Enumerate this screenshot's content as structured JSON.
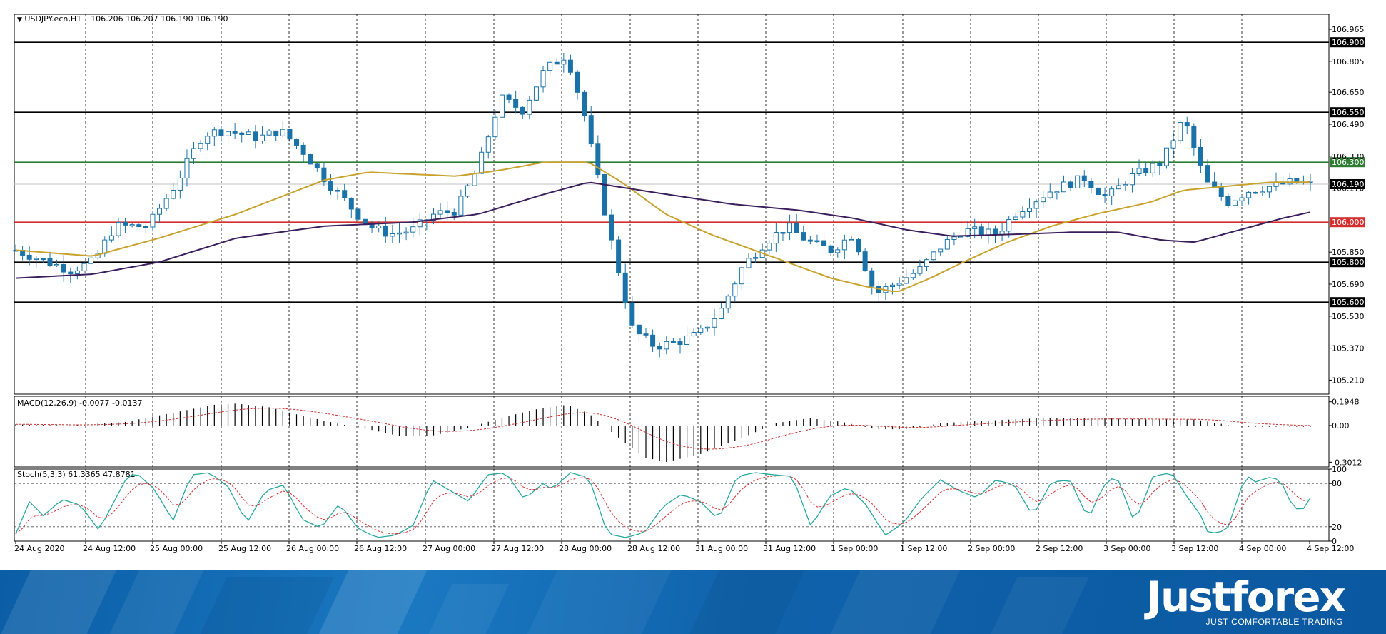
{
  "header": {
    "symbol": "USDJPY.ecn,H1",
    "quote": "106.206 106.207 106.190 106.190"
  },
  "indicators": {
    "macd_label": "MACD(12,26,9) -0.0077 -0.0137",
    "stoch_label": "Stoch(5,3,3) 61.3365 47.8781"
  },
  "footer": {
    "logo": "Justforex",
    "slogan": "JUST COMFORTABLE TRADING"
  },
  "colors": {
    "candle": "#1a73a8",
    "ma_fast": "#c8a22c",
    "ma_slow": "#3b1e5c",
    "level_green": "#2e7d32",
    "level_red": "#d32f2f",
    "stoch_main": "#29a8a0",
    "stoch_signal": "#d32f2f",
    "macd_signal": "#d32f2f",
    "brand": "#0b5ea6"
  },
  "chart_data": [
    {
      "type": "candlestick",
      "title": "USDJPY.ecn,H1",
      "yticks": [
        "106.965",
        "106.805",
        "106.650",
        "106.490",
        "106.330",
        "106.170",
        "105.850",
        "105.690",
        "105.530",
        "105.370",
        "105.210"
      ],
      "ylim": [
        105.14,
        107.04
      ],
      "xticks": [
        "24 Aug 2020",
        "24 Aug 12:00",
        "25 Aug 00:00",
        "25 Aug 12:00",
        "26 Aug 00:00",
        "26 Aug 12:00",
        "27 Aug 00:00",
        "27 Aug 12:00",
        "28 Aug 00:00",
        "28 Aug 12:00",
        "31 Aug 00:00",
        "31 Aug 12:00",
        "1 Sep 00:00",
        "1 Sep 12:00",
        "2 Sep 00:00",
        "2 Sep 12:00",
        "3 Sep 00:00",
        "3 Sep 12:00",
        "4 Sep 00:00",
        "4 Sep 12:00"
      ],
      "levels": [
        {
          "value": 106.9,
          "label": "106.900",
          "color": "black"
        },
        {
          "value": 106.55,
          "label": "106.550",
          "color": "black"
        },
        {
          "value": 106.3,
          "label": "106.300",
          "color": "green"
        },
        {
          "value": 106.0,
          "label": "106.000",
          "color": "red"
        },
        {
          "value": 105.8,
          "label": "105.800",
          "color": "black"
        },
        {
          "value": 105.6,
          "label": "105.600",
          "color": "black"
        }
      ],
      "current_price": {
        "value": 106.19,
        "label": "106.190"
      },
      "bars": 190,
      "anchors": [
        [
          0,
          105.86
        ],
        [
          6,
          105.8
        ],
        [
          10,
          105.76
        ],
        [
          14,
          105.8
        ],
        [
          18,
          105.98
        ],
        [
          24,
          105.98
        ],
        [
          29,
          106.19
        ],
        [
          34,
          106.44
        ],
        [
          38,
          106.46
        ],
        [
          44,
          106.42
        ],
        [
          48,
          106.46
        ],
        [
          52,
          106.36
        ],
        [
          56,
          106.22
        ],
        [
          60,
          106.1
        ],
        [
          64,
          105.98
        ],
        [
          68,
          105.94
        ],
        [
          72,
          105.96
        ],
        [
          76,
          106.04
        ],
        [
          80,
          106.06
        ],
        [
          84,
          106.28
        ],
        [
          88,
          106.62
        ],
        [
          92,
          106.56
        ],
        [
          96,
          106.76
        ],
        [
          100,
          106.84
        ],
        [
          103,
          106.56
        ],
        [
          108,
          105.92
        ],
        [
          112,
          105.46
        ],
        [
          116,
          105.38
        ],
        [
          120,
          105.4
        ],
        [
          124,
          105.44
        ],
        [
          128,
          105.56
        ],
        [
          132,
          105.78
        ],
        [
          136,
          105.9
        ],
        [
          140,
          105.98
        ],
        [
          144,
          105.9
        ],
        [
          148,
          105.86
        ],
        [
          152,
          105.94
        ],
        [
          156,
          105.64
        ],
        [
          160,
          105.7
        ],
        [
          164,
          105.76
        ],
        [
          168,
          105.88
        ],
        [
          172,
          105.96
        ],
        [
          178,
          105.94
        ],
        [
          182,
          106.06
        ],
        [
          188,
          106.16
        ],
        [
          194,
          106.22
        ],
        [
          198,
          106.12
        ],
        [
          202,
          106.22
        ],
        [
          208,
          106.3
        ],
        [
          212,
          106.52
        ],
        [
          216,
          106.2
        ],
        [
          220,
          106.1
        ],
        [
          224,
          106.16
        ],
        [
          228,
          106.18
        ],
        [
          232,
          106.2
        ],
        [
          235,
          106.19
        ]
      ],
      "ma_fast": [
        [
          0,
          105.86
        ],
        [
          14,
          105.83
        ],
        [
          26,
          105.92
        ],
        [
          40,
          106.04
        ],
        [
          56,
          106.21
        ],
        [
          64,
          106.25
        ],
        [
          72,
          106.24
        ],
        [
          80,
          106.23
        ],
        [
          88,
          106.26
        ],
        [
          96,
          106.3
        ],
        [
          104,
          106.3
        ],
        [
          110,
          106.2
        ],
        [
          118,
          106.04
        ],
        [
          126,
          105.94
        ],
        [
          134,
          105.86
        ],
        [
          142,
          105.78
        ],
        [
          148,
          105.72
        ],
        [
          154,
          105.68
        ],
        [
          160,
          105.65
        ],
        [
          166,
          105.72
        ],
        [
          172,
          105.8
        ],
        [
          180,
          105.9
        ],
        [
          188,
          105.98
        ],
        [
          196,
          106.04
        ],
        [
          206,
          106.1
        ],
        [
          212,
          106.16
        ],
        [
          220,
          106.18
        ],
        [
          228,
          106.2
        ],
        [
          235,
          106.2
        ]
      ],
      "ma_slow": [
        [
          0,
          105.72
        ],
        [
          14,
          105.74
        ],
        [
          26,
          105.8
        ],
        [
          40,
          105.92
        ],
        [
          56,
          105.98
        ],
        [
          72,
          106.0
        ],
        [
          84,
          106.04
        ],
        [
          96,
          106.14
        ],
        [
          104,
          106.2
        ],
        [
          118,
          106.14
        ],
        [
          130,
          106.09
        ],
        [
          142,
          106.06
        ],
        [
          152,
          106.02
        ],
        [
          162,
          105.96
        ],
        [
          170,
          105.93
        ],
        [
          182,
          105.94
        ],
        [
          192,
          105.95
        ],
        [
          200,
          105.95
        ],
        [
          208,
          105.91
        ],
        [
          214,
          105.9
        ],
        [
          222,
          105.96
        ],
        [
          230,
          106.02
        ],
        [
          235,
          106.05
        ]
      ]
    },
    {
      "type": "histogram",
      "title": "MACD(12,26,9) -0.0077 -0.0137",
      "yticks": [
        "0.1948",
        "0.00",
        "-0.3012"
      ],
      "ylim": [
        -0.34,
        0.24
      ],
      "main": -0.0077,
      "signal": -0.0137,
      "profile": [
        [
          0,
          0.01
        ],
        [
          10,
          0.0
        ],
        [
          20,
          0.03
        ],
        [
          28,
          0.1
        ],
        [
          36,
          0.17
        ],
        [
          40,
          0.18
        ],
        [
          46,
          0.15
        ],
        [
          52,
          0.08
        ],
        [
          58,
          0.02
        ],
        [
          64,
          -0.03
        ],
        [
          70,
          -0.09
        ],
        [
          76,
          -0.08
        ],
        [
          82,
          -0.02
        ],
        [
          88,
          0.06
        ],
        [
          94,
          0.13
        ],
        [
          100,
          0.17
        ],
        [
          104,
          0.1
        ],
        [
          110,
          -0.12
        ],
        [
          114,
          -0.26
        ],
        [
          118,
          -0.3
        ],
        [
          124,
          -0.24
        ],
        [
          132,
          -0.1
        ],
        [
          138,
          0.02
        ],
        [
          144,
          0.06
        ],
        [
          150,
          0.03
        ],
        [
          156,
          -0.03
        ],
        [
          162,
          -0.03
        ],
        [
          168,
          0.02
        ],
        [
          176,
          0.04
        ],
        [
          186,
          0.06
        ],
        [
          196,
          0.06
        ],
        [
          206,
          0.05
        ],
        [
          214,
          0.05
        ],
        [
          222,
          -0.01
        ],
        [
          230,
          -0.01
        ],
        [
          235,
          -0.01
        ]
      ]
    },
    {
      "type": "line",
      "title": "Stoch(5,3,3) 61.3365 47.8781",
      "yticks": [
        "100",
        "80",
        "20",
        "0"
      ],
      "ylim": [
        0,
        100
      ],
      "main": 61.3365,
      "signal": 47.8781,
      "profile": [
        [
          0,
          10
        ],
        [
          3,
          55
        ],
        [
          6,
          35
        ],
        [
          10,
          58
        ],
        [
          14,
          50
        ],
        [
          18,
          15
        ],
        [
          24,
          88
        ],
        [
          26,
          95
        ],
        [
          30,
          72
        ],
        [
          34,
          28
        ],
        [
          38,
          92
        ],
        [
          42,
          95
        ],
        [
          46,
          75
        ],
        [
          50,
          25
        ],
        [
          54,
          70
        ],
        [
          58,
          78
        ],
        [
          62,
          30
        ],
        [
          66,
          18
        ],
        [
          70,
          52
        ],
        [
          74,
          18
        ],
        [
          78,
          5
        ],
        [
          82,
          8
        ],
        [
          86,
          22
        ],
        [
          90,
          85
        ],
        [
          94,
          70
        ],
        [
          98,
          55
        ],
        [
          102,
          92
        ],
        [
          106,
          95
        ],
        [
          110,
          58
        ],
        [
          114,
          80
        ],
        [
          116,
          72
        ],
        [
          120,
          95
        ],
        [
          124,
          88
        ],
        [
          128,
          10
        ],
        [
          132,
          5
        ],
        [
          136,
          12
        ],
        [
          140,
          48
        ],
        [
          144,
          65
        ],
        [
          148,
          55
        ],
        [
          152,
          30
        ],
        [
          156,
          90
        ],
        [
          160,
          95
        ],
        [
          164,
          92
        ],
        [
          168,
          90
        ],
        [
          172,
          20
        ],
        [
          176,
          62
        ],
        [
          180,
          75
        ],
        [
          184,
          50
        ],
        [
          188,
          8
        ],
        [
          192,
          25
        ],
        [
          196,
          60
        ],
        [
          200,
          85
        ],
        [
          204,
          70
        ],
        [
          208,
          60
        ],
        [
          212,
          85
        ],
        [
          216,
          78
        ],
        [
          220,
          35
        ],
        [
          224,
          82
        ],
        [
          228,
          85
        ],
        [
          232,
          30
        ],
        [
          235,
          75
        ],
        [
          238,
          92
        ],
        [
          242,
          25
        ],
        [
          246,
          90
        ],
        [
          250,
          95
        ],
        [
          254,
          55
        ],
        [
          256,
          40
        ],
        [
          258,
          10
        ],
        [
          262,
          15
        ],
        [
          266,
          92
        ],
        [
          268,
          82
        ],
        [
          272,
          90
        ],
        [
          274,
          78
        ],
        [
          276,
          50
        ],
        [
          278,
          40
        ],
        [
          280,
          60
        ]
      ]
    }
  ]
}
